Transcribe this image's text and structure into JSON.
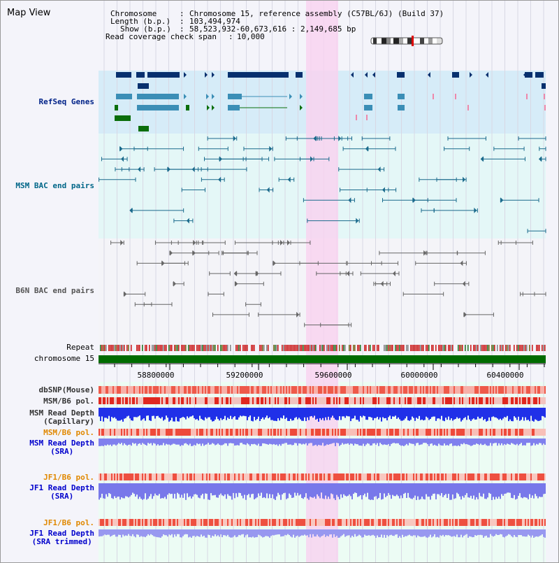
{
  "view_title": "Map View",
  "info": {
    "chromosome_label": "Chromosome",
    "chromosome_value": "Chromosome 15, reference assembly (C57BL/6J) (Build 37)",
    "length_label": "Length (b.p.)",
    "length_value": "103,494,974",
    "show_label": "Show (b.p.)",
    "show_value": "58,523,932-60,673,616 : 2,149,685 bp",
    "span_label": "Read coverage check span",
    "span_value": "10,000"
  },
  "tracks": {
    "refseq": "RefSeq Genes",
    "msm_bac": "MSM BAC end pairs",
    "b6n_bac": "B6N BAC end pairs",
    "repeat": "Repeat",
    "chromosome": "chromosome 15",
    "dbsnp": "dbSNP(Mouse)",
    "msm_b6_pol_1": "MSM/B6 pol.",
    "msm_depth_cap": "MSM Read Depth\n(Capillary)",
    "msm_b6_pol_2": "MSM/B6 pol.",
    "msm_depth_sra": "MSM Read Depth\n(SRA)",
    "jf1_b6_pol_1": "JF1/B6 pol.",
    "jf1_depth_sra": "JF1 Read Depth\n(SRA)",
    "jf1_b6_pol_2": "JF1/B6 pol.",
    "jf1_depth_trim": "JF1 Read Depth\n(SRA trimmed)"
  },
  "axis_ticks": [
    "58800000",
    "59200000",
    "59600000",
    "60000000",
    "60400000"
  ],
  "colors": {
    "page_bg": "#f4f4fa",
    "refseq_bg": "#d6ecf8",
    "msm_bac_bg": "#e4f7f7",
    "lower_bg": "#ecfcf4",
    "highlight": "#f8d4f0",
    "chromosome_bar": "#006b00",
    "refseq_label": "#002288",
    "msm_label": "#006688",
    "b6n_label": "#555555",
    "pol_orange": "#e08800",
    "depth_blue": "#0000cc"
  }
}
